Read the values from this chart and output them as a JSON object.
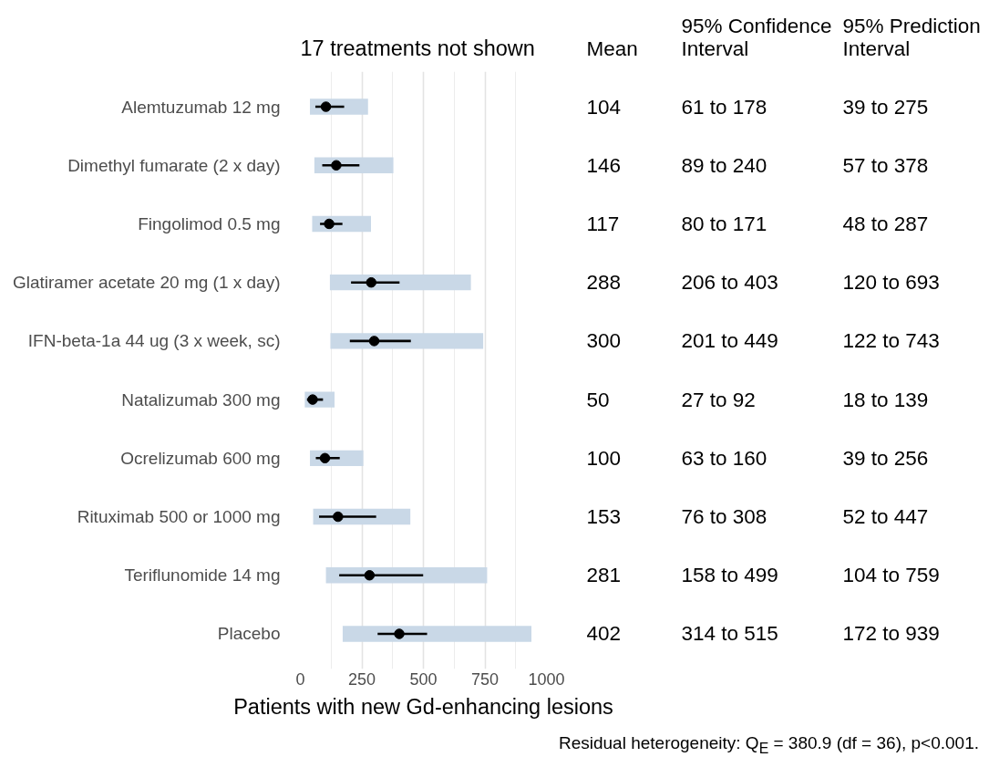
{
  "chart_data": {
    "type": "bar",
    "orientation": "horizontal",
    "title": "17 treatments not shown",
    "xlabel": "Patients with new Gd-enhancing lesions",
    "categories": [
      "Alemtuzumab 12 mg",
      "Dimethyl fumarate (2 x day)",
      "Fingolimod 0.5 mg",
      "Glatiramer acetate 20 mg (1 x day)",
      "IFN-beta-1a 44 ug (3 x week, sc)",
      "Natalizumab 300 mg",
      "Ocrelizumab 600 mg",
      "Rituximab 500 or 1000 mg",
      "Teriflunomide 14 mg",
      "Placebo"
    ],
    "series": [
      {
        "type": "scatter",
        "color": "#000000",
        "values": [
          104,
          146,
          117,
          288,
          300,
          50,
          100,
          153,
          281,
          402
        ],
        "errors": [
          [
            61,
            178
          ],
          [
            89,
            240
          ],
          [
            80,
            171
          ],
          [
            206,
            403
          ],
          [
            201,
            449
          ],
          [
            27,
            92
          ],
          [
            63,
            160
          ],
          [
            76,
            308
          ],
          [
            158,
            499
          ],
          [
            314,
            515
          ]
        ]
      },
      {
        "color": "#c9d8e7",
        "base": [
          39,
          57,
          48,
          120,
          122,
          18,
          39,
          52,
          104,
          172
        ],
        "values": [
          236,
          321,
          239,
          573,
          621,
          121,
          217,
          395,
          655,
          767
        ]
      }
    ],
    "xlim": [
      0,
      1000
    ],
    "xticks": [
      0,
      {
        "value": 125,
        "label": null
      },
      250,
      {
        "value": 375,
        "label": null
      },
      500,
      {
        "value": 625,
        "label": null
      },
      750,
      {
        "value": 875,
        "label": null
      },
      1000
    ],
    "grid": "x",
    "marker": "circle",
    "annotations": [
      "Mean",
      "95% Confidence\nInterval",
      "95% Prediction\nInterval",
      "104",
      "146",
      "117",
      "288",
      "300",
      "50",
      "100",
      "153",
      "281",
      "402",
      "61 to 178",
      "89 to 240",
      "80 to 171",
      "206 to 403",
      "201 to 449",
      "27 to 92",
      "63 to 160",
      "76 to 308",
      "158 to 499",
      "314 to 515",
      "39 to 275",
      "57 to 378",
      "48 to 287",
      "120 to 693",
      "122 to 743",
      "18 to 139",
      "39 to 256",
      "52 to 447",
      "104 to 759",
      "172 to 939",
      "Residual heterogeneity: Q$_{E}$ = 380.9 (df = 36), p<0.001."
    ]
  }
}
